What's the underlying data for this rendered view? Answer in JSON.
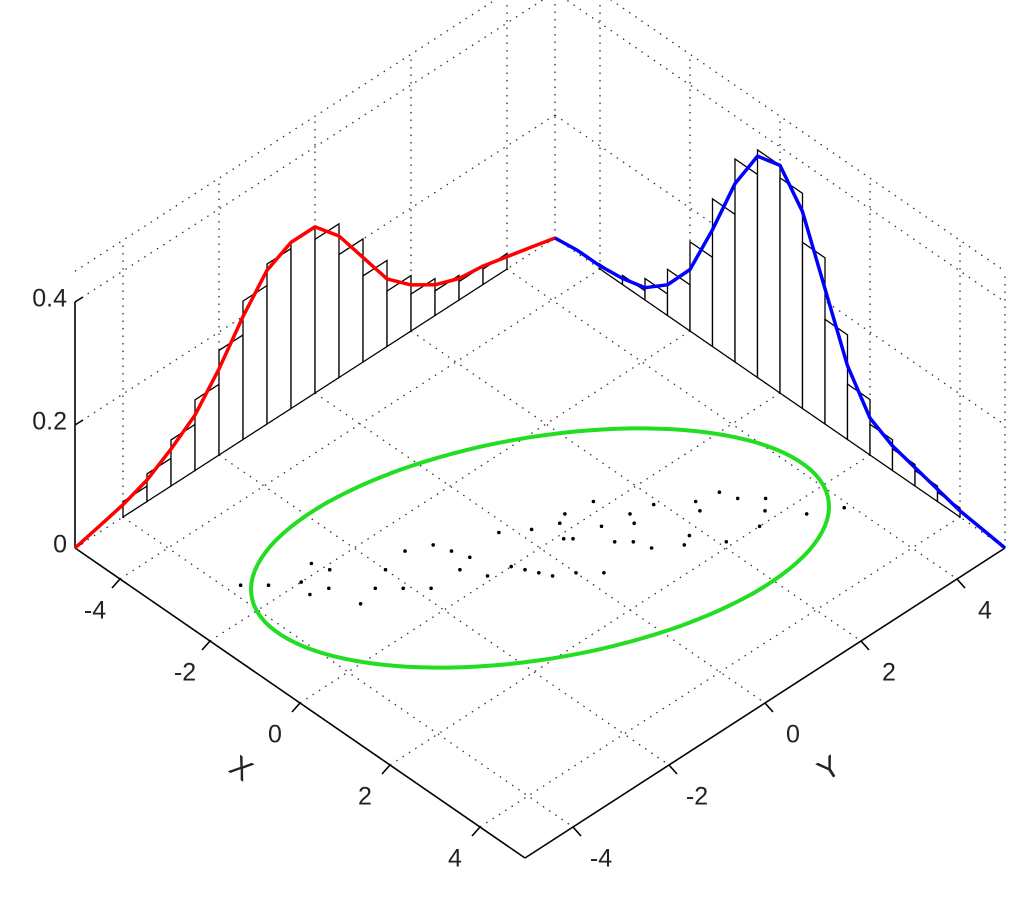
{
  "chart_data": {
    "type": "scatter",
    "xlabel": "X",
    "ylabel": "Y",
    "xlim": [
      -5,
      5
    ],
    "ylim": [
      -5,
      5
    ],
    "zlim": [
      0,
      0.45
    ],
    "xticks": [
      -4,
      -2,
      0,
      2,
      4
    ],
    "yticks": [
      -4,
      -2,
      0,
      2,
      4
    ],
    "zticks": [
      0,
      0.2,
      0.4
    ],
    "grid": true,
    "point_color": "#000000",
    "x": [
      0.2,
      -0.5,
      1.1,
      -1.3,
      0.7,
      -0.2,
      1.8,
      -2.0,
      0.4,
      -0.9,
      1.4,
      -1.6,
      0.0,
      0.9,
      -0.4,
      2.3,
      -2.6,
      0.6,
      -1.1,
      1.2,
      -0.7,
      0.3,
      1.6,
      -1.9,
      0.8,
      -0.1,
      2.0,
      -1.4,
      0.5,
      -0.8,
      1.0,
      -2.3,
      0.1,
      1.5,
      -0.6,
      -1.0,
      2.6,
      -0.3,
      0.9,
      -1.7,
      0.2,
      1.3,
      -2.2,
      0.6,
      -0.5,
      1.9,
      -1.2,
      0.4,
      -0.2,
      1.1
    ],
    "y": [
      0.5,
      -1.2,
      2.3,
      -2.0,
      0.9,
      0.6,
      3.0,
      -3.1,
      1.5,
      -1.0,
      1.8,
      -2.9,
      -0.6,
      2.4,
      0.2,
      3.4,
      -3.8,
      -0.3,
      -2.4,
      1.2,
      -0.2,
      1.0,
      3.2,
      -2.6,
      0.0,
      -1.0,
      2.7,
      -1.5,
      1.9,
      -2.1,
      2.8,
      -3.5,
      0.4,
      1.6,
      -0.9,
      -2.8,
      3.9,
      0.8,
      1.1,
      -3.2,
      -0.5,
      2.9,
      -2.7,
      1.4,
      -1.8,
      2.1,
      -1.1,
      -0.4,
      1.3,
      0.3
    ],
    "ellipse": {
      "center": [
        0,
        0
      ],
      "radii": [
        4.5,
        2.5
      ],
      "angle_deg": 62,
      "color": "#22dd22"
    },
    "density_x": {
      "color": "#0000ff",
      "grid": [
        -5,
        -4.5,
        -4,
        -3.5,
        -3,
        -2.5,
        -2,
        -1.5,
        -1,
        -0.5,
        0,
        0.5,
        1,
        1.5,
        2,
        2.5,
        3,
        3.5,
        4,
        4.5,
        5
      ],
      "values": [
        0,
        0.005,
        0.005,
        0.01,
        0.02,
        0.05,
        0.1,
        0.19,
        0.29,
        0.36,
        0.37,
        0.32,
        0.22,
        0.12,
        0.06,
        0.04,
        0.03,
        0.02,
        0.01,
        0.005,
        0
      ]
    },
    "density_y": {
      "color": "#ff0000",
      "grid": [
        -5,
        -4.5,
        -4,
        -3.5,
        -3,
        -2.5,
        -2,
        -1.5,
        -1,
        -0.5,
        0,
        0.5,
        1,
        1.5,
        2,
        2.5,
        3,
        3.5,
        4,
        4.5,
        5
      ],
      "values": [
        0,
        0.01,
        0.02,
        0.035,
        0.06,
        0.09,
        0.14,
        0.2,
        0.25,
        0.27,
        0.27,
        0.23,
        0.17,
        0.11,
        0.075,
        0.05,
        0.035,
        0.03,
        0.02,
        0.01,
        0
      ]
    },
    "hist_x": {
      "bins": [
        -4,
        -3.5,
        -3,
        -2.5,
        -2,
        -1.5,
        -1,
        -0.5,
        0,
        0.5,
        1,
        1.5,
        2,
        2.5,
        3,
        3.5,
        4
      ],
      "counts": [
        0.008,
        0.015,
        0.035,
        0.075,
        0.145,
        0.24,
        0.33,
        0.37,
        0.35,
        0.27,
        0.17,
        0.09,
        0.05,
        0.035,
        0.025,
        0.015
      ]
    },
    "hist_y": {
      "bins": [
        -4,
        -3.5,
        -3,
        -2.5,
        -2,
        -1.5,
        -1,
        -0.5,
        0,
        0.5,
        1,
        1.5,
        2,
        2.5,
        3,
        3.5,
        4
      ],
      "counts": [
        0.025,
        0.045,
        0.075,
        0.115,
        0.17,
        0.225,
        0.26,
        0.27,
        0.25,
        0.2,
        0.14,
        0.09,
        0.06,
        0.04,
        0.03,
        0.025
      ]
    }
  }
}
